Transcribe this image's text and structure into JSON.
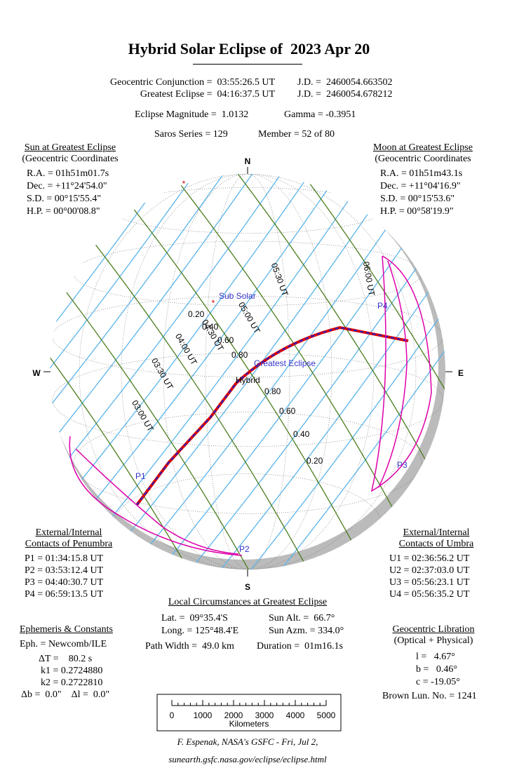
{
  "header": {
    "title": "Hybrid Solar Eclipse of  2023 Apr 20",
    "conjunction": "Geocentric Conjunction =  03:55:26.5 UT",
    "conjunction_jd": "J.D. =  2460054.663502",
    "greatest": "Greatest Eclipse =  04:16:37.5 UT",
    "greatest_jd": "J.D. =  2460054.678212",
    "magnitude": "Eclipse Magnitude =  1.0132",
    "gamma": "Gamma = -0.3951",
    "saros": "Saros Series = 129",
    "member": "Member = 52 of 80"
  },
  "sun": {
    "title": "Sun at Greatest Eclipse",
    "subtitle": "(Geocentric Coordinates",
    "lines": [
      "R.A. = 01h51m01.7s",
      "Dec. = +11°24'54.0\"",
      "S.D. = 00°15'55.4\"",
      "H.P. = 00°00'08.8\""
    ]
  },
  "moon": {
    "title": "Moon at Greatest Eclipse",
    "subtitle": "(Geocentric Coordinates",
    "lines": [
      "R.A. = 01h51m43.1s",
      "Dec. = +11°04'16.9\"",
      "S.D. = 00°15'53.6\"",
      "H.P. = 00°58'19.9\""
    ]
  },
  "penumbra": {
    "title": [
      "External/Internal",
      "Contacts of Penumbra"
    ],
    "lines": [
      "P1 = 01:34:15.8 UT",
      "P2 = 03:53:12.4 UT",
      "P3 = 04:40:30.7 UT",
      "P4 = 06:59:13.5 UT"
    ]
  },
  "umbra": {
    "title": [
      "External/Internal",
      "Contacts of Umbra"
    ],
    "lines": [
      "U1 = 02:36:56.2 UT",
      "U2 = 02:37:03.0 UT",
      "U3 = 05:56:23.1 UT",
      "U4 = 05:56:35.2 UT"
    ]
  },
  "local": {
    "title": "Local Circumstances at Greatest Eclipse",
    "rows": [
      [
        "Lat. =  09°35.4'S",
        "Sun Alt. =  66.7°"
      ],
      [
        "Long. = 125°48.4'E",
        "Sun Azm. = 334.0°"
      ],
      [
        "Path Width =  49.0 km",
        "Duration =  01m16.1s"
      ]
    ]
  },
  "ephemeris": {
    "title": "Ephemeris & Constants",
    "lines": [
      "Eph. = Newcomb/ILE",
      "ΔT =    80.2 s",
      "k1 = 0.2724880",
      "k2 = 0.2722810",
      "Δb =  0.0\"    Δl =  0.0\""
    ]
  },
  "libration": {
    "title": "Geocentric Libration",
    "subtitle": "(Optical + Physical)",
    "lines": [
      "l =   4.67°",
      "b =   0.46°",
      "c = -19.05°"
    ],
    "brown": "Brown Lun. No. = 1241"
  },
  "scale": {
    "ticks": [
      "0",
      "1000",
      "2000",
      "3000",
      "4000",
      "5000"
    ],
    "unit": "Kilometers"
  },
  "credit": [
    "F. Espenak, NASA's GSFC - Fri, Jul 2,",
    "sunearth.gsfc.nasa.gov/eclipse/eclipse.html"
  ],
  "globe": {
    "compass": [
      "N",
      "S",
      "W",
      "E"
    ],
    "sub_solar": "Sub Solar",
    "greatest": "Greatest Eclipse",
    "hybrid": "Hybrid",
    "contacts": [
      "P1",
      "P2",
      "P3",
      "P4"
    ],
    "magnitudes": [
      "0.20",
      "0.40",
      "0.60",
      "0.80",
      "0.80",
      "0.60",
      "0.40",
      "0.20"
    ],
    "times": [
      "03:00 UT",
      "03:30 UT",
      "04:00 UT",
      "04:30 UT",
      "05:00 UT",
      "05:30 UT",
      "06:00 UT"
    ]
  }
}
